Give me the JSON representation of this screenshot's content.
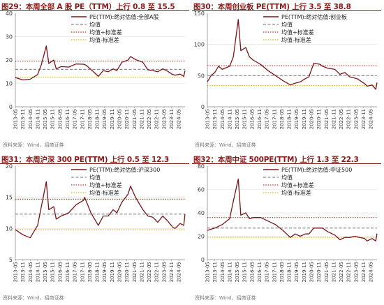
{
  "chart_data": [
    {
      "figure_label": "图29：本周全部 A 股 PE（TTM）上行 0.8 至 15.5",
      "type": "line",
      "legend": [
        "PE(TTM):绝对估值:全部A股",
        "均值",
        "均值+标准差",
        "均值-标准差"
      ],
      "x_ticks": [
        "2013-05",
        "2013-11",
        "2014-05",
        "2014-11",
        "2015-05",
        "2015-11",
        "2016-05",
        "2016-11",
        "2017-05",
        "2017-11",
        "2018-05",
        "2018-11",
        "2019-05",
        "2019-11",
        "2020-05",
        "2020-11",
        "2021-05",
        "2021-11",
        "2022-05",
        "2022-11",
        "2023-05",
        "2023-11",
        "2024-05"
      ],
      "ylim": [
        0,
        40
      ],
      "y_ticks": [
        0,
        10,
        20,
        30,
        40
      ],
      "legend_position": "top-right",
      "mean": 16.0,
      "mean_plus_std": 19.5,
      "mean_minus_std": 12.6,
      "series": [
        {
          "name": "PE(TTM):绝对估值:全部A股",
          "x": [
            "2013-05",
            "2013-11",
            "2014-05",
            "2014-11",
            "2015-02",
            "2015-06",
            "2015-08",
            "2015-12",
            "2016-02",
            "2016-06",
            "2016-12",
            "2017-06",
            "2017-12",
            "2018-02",
            "2018-06",
            "2018-12",
            "2019-04",
            "2019-08",
            "2019-12",
            "2020-03",
            "2020-07",
            "2020-12",
            "2021-02",
            "2021-06",
            "2021-12",
            "2022-04",
            "2022-08",
            "2022-12",
            "2023-04",
            "2023-08",
            "2023-12",
            "2024-02",
            "2024-06",
            "2024-09",
            "2024-10"
          ],
          "values": [
            12.5,
            11.5,
            11.8,
            13.8,
            18.0,
            26.0,
            18.5,
            20.0,
            16.2,
            17.2,
            17.0,
            18.3,
            18.2,
            17.8,
            16.0,
            13.0,
            15.5,
            15.0,
            16.2,
            15.5,
            19.0,
            20.0,
            21.5,
            20.2,
            19.0,
            15.8,
            15.5,
            15.0,
            16.2,
            15.2,
            13.8,
            13.5,
            14.0,
            13.0,
            15.5
          ]
        }
      ]
    },
    {
      "figure_label": "图30：本周创业板 PE(TTM) 上行 3.5 至 38.8",
      "type": "line",
      "legend": [
        "PE(TTM):绝对估值:创业板",
        "均值",
        "均值+标准差",
        "均值-标准差"
      ],
      "x_ticks": [
        "2013-05",
        "2013-11",
        "2014-05",
        "2014-11",
        "2015-05",
        "2015-11",
        "2016-05",
        "2016-11",
        "2017-05",
        "2017-11",
        "2018-05",
        "2018-11",
        "2019-05",
        "2019-11",
        "2020-05",
        "2020-11",
        "2021-05",
        "2021-11",
        "2022-05",
        "2022-11",
        "2023-05",
        "2023-11",
        "2024-05"
      ],
      "ylim": [
        0,
        150
      ],
      "y_ticks": [
        0,
        50,
        100,
        150
      ],
      "legend_position": "top-right",
      "mean": 50.0,
      "mean_plus_std": 66.0,
      "mean_minus_std": 34.0,
      "series": [
        {
          "name": "PE(TTM):绝对估值:创业板",
          "x": [
            "2013-05",
            "2013-08",
            "2013-11",
            "2014-02",
            "2014-05",
            "2014-11",
            "2015-02",
            "2015-06",
            "2015-08",
            "2015-12",
            "2016-03",
            "2016-06",
            "2016-12",
            "2017-06",
            "2017-12",
            "2018-06",
            "2018-12",
            "2019-04",
            "2019-08",
            "2019-12",
            "2020-03",
            "2020-07",
            "2020-12",
            "2021-02",
            "2021-06",
            "2021-12",
            "2022-04",
            "2022-08",
            "2022-12",
            "2023-06",
            "2023-12",
            "2024-02",
            "2024-06",
            "2024-09",
            "2024-10"
          ],
          "values": [
            40,
            50,
            55,
            65,
            60,
            65,
            80,
            140,
            90,
            95,
            80,
            75,
            68,
            58,
            50,
            42,
            35,
            38,
            40,
            45,
            48,
            70,
            68,
            65,
            62,
            60,
            52,
            55,
            48,
            45,
            37,
            33,
            35,
            28,
            38.8
          ]
        }
      ]
    },
    {
      "figure_label": "图31：本周沪深 300 PE(TTM) 上行 0.5 至 12.3",
      "type": "line",
      "legend": [
        "PE(TTM):绝对估值:沪深300",
        "均值",
        "均值+标准差",
        "均值-标准差"
      ],
      "x_ticks": [
        "2013-05",
        "2013-11",
        "2014-05",
        "2014-11",
        "2015-05",
        "2015-11",
        "2016-05",
        "2016-11",
        "2017-05",
        "2017-11",
        "2018-05",
        "2018-11",
        "2019-05",
        "2019-11",
        "2020-05",
        "2020-11",
        "2021-05",
        "2021-11",
        "2022-05",
        "2022-11",
        "2023-05",
        "2023-11",
        "2024-05"
      ],
      "ylim": [
        5,
        20
      ],
      "y_ticks": [
        5,
        10,
        15,
        20
      ],
      "legend_position": "top-right",
      "mean": 12.3,
      "mean_plus_std": 14.7,
      "mean_minus_std": 9.8,
      "series": [
        {
          "name": "PE(TTM):绝对估值:沪深300",
          "x": [
            "2013-05",
            "2013-11",
            "2014-05",
            "2014-11",
            "2015-02",
            "2015-06",
            "2015-08",
            "2015-12",
            "2016-02",
            "2016-06",
            "2016-12",
            "2017-06",
            "2017-12",
            "2018-01",
            "2018-06",
            "2018-12",
            "2019-04",
            "2019-08",
            "2019-12",
            "2020-03",
            "2020-07",
            "2020-12",
            "2021-02",
            "2021-06",
            "2021-12",
            "2022-04",
            "2022-08",
            "2022-12",
            "2023-04",
            "2023-08",
            "2023-12",
            "2024-02",
            "2024-06",
            "2024-09",
            "2024-10"
          ],
          "values": [
            9.8,
            9.0,
            8.5,
            10.5,
            13.5,
            17.5,
            13.0,
            13.5,
            11.5,
            12.0,
            12.5,
            13.8,
            14.5,
            15.0,
            12.5,
            10.5,
            12.0,
            12.0,
            13.0,
            12.5,
            14.2,
            15.5,
            16.8,
            15.0,
            13.0,
            12.0,
            11.8,
            11.0,
            12.0,
            11.2,
            10.2,
            10.0,
            10.8,
            10.5,
            12.3
          ]
        }
      ]
    },
    {
      "figure_label": "图32：本周中证 500PE(TTM) 上行 1.3 至 22.3",
      "type": "line",
      "legend": [
        "PE(TTM):绝对估值:中证500",
        "均值",
        "均值+标准差",
        "均值-标准差"
      ],
      "x_ticks": [
        "2013-05",
        "2013-11",
        "2014-05",
        "2014-11",
        "2015-05",
        "2015-11",
        "2016-05",
        "2016-11",
        "2017-05",
        "2017-11",
        "2018-05",
        "2018-11",
        "2019-05",
        "2019-11",
        "2020-05",
        "2020-11",
        "2021-05",
        "2021-11",
        "2022-05",
        "2022-11",
        "2023-05",
        "2023-11",
        "2024-05"
      ],
      "ylim": [
        0,
        80
      ],
      "y_ticks": [
        0,
        20,
        40,
        60,
        80
      ],
      "legend_position": "top-right",
      "mean": 27.0,
      "mean_plus_std": 36.0,
      "mean_minus_std": 19.0,
      "series": [
        {
          "name": "PE(TTM):绝对估值:中证500",
          "x": [
            "2013-05",
            "2013-08",
            "2013-11",
            "2014-05",
            "2014-11",
            "2015-02",
            "2015-06",
            "2015-08",
            "2015-12",
            "2016-03",
            "2016-06",
            "2016-12",
            "2017-06",
            "2017-12",
            "2018-06",
            "2018-12",
            "2019-04",
            "2019-08",
            "2019-12",
            "2020-03",
            "2020-07",
            "2020-12",
            "2021-02",
            "2021-06",
            "2021-12",
            "2022-04",
            "2022-08",
            "2022-12",
            "2023-04",
            "2023-08",
            "2023-12",
            "2024-02",
            "2024-06",
            "2024-09",
            "2024-10"
          ],
          "values": [
            25,
            26,
            27,
            30,
            35,
            50,
            69,
            38,
            40,
            35,
            36,
            36,
            33,
            30,
            25,
            19,
            22,
            20,
            22,
            22,
            27,
            27,
            27,
            24,
            21,
            17,
            19,
            19,
            20,
            19,
            18,
            16,
            18,
            16,
            22.3
          ]
        }
      ]
    }
  ],
  "panels": [
    {
      "title": "图29：本周全部 A 股 PE（TTM）上行 0.8 至 15.5",
      "source": "资料来源：Wind、招商证券"
    },
    {
      "title": "图30：本周创业板 PE(TTM) 上行 3.5 至 38.8",
      "source": "资料来源：Wind、招商证券"
    },
    {
      "title": "图31：本周沪深 300 PE(TTM) 上行 0.5 至 12.3",
      "source": "资料来源：Wind、招商证券"
    },
    {
      "title": "图32：本周中证 500PE(TTM) 上行 1.3 至 22.3",
      "source": "资料来源：Wind、招商证券"
    }
  ],
  "colors": {
    "series": "#7B1418",
    "mean": "#8C8C8C",
    "mean_plus_std": "#C0392B",
    "mean_minus_std": "#E6B020",
    "title": "#8B1A1A",
    "axis": "#8C8C8C",
    "grid": "#DDDDDD"
  }
}
